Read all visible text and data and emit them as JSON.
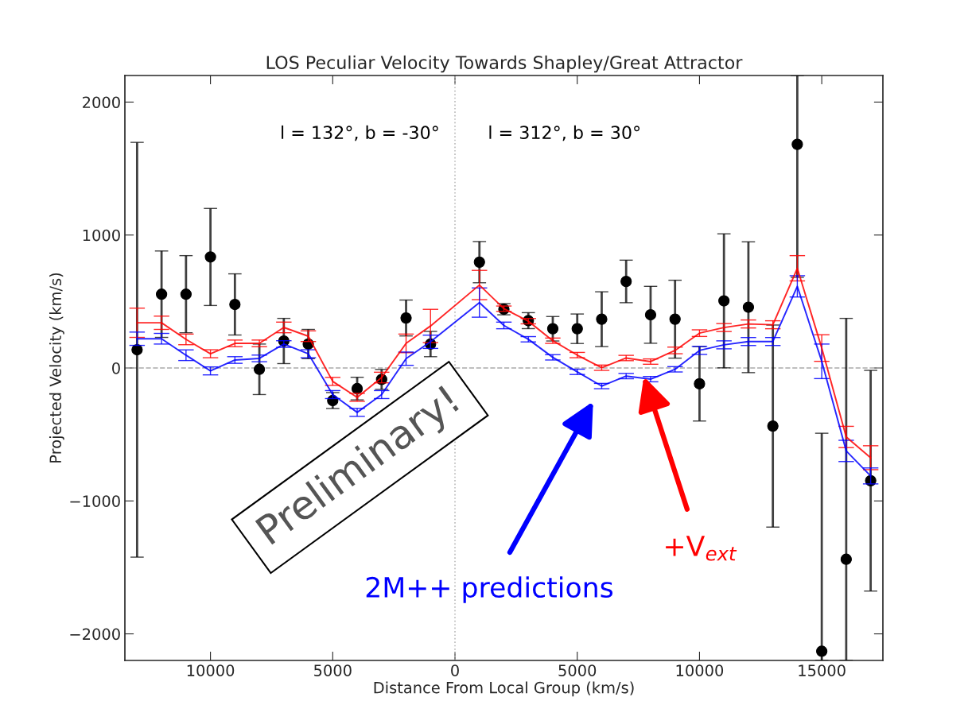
{
  "chart_data": {
    "type": "line",
    "title": "LOS Peculiar Velocity Towards Shapley/Great Attractor",
    "xlabel": "Distance From Local Group (km/s)",
    "ylabel": "Projected Velocity (km/s)",
    "xlim": [
      -13500,
      17500
    ],
    "ylim": [
      -2200,
      2200
    ],
    "xticks": [
      {
        "value": -10000,
        "label": "10000"
      },
      {
        "value": -5000,
        "label": "5000"
      },
      0,
      5000,
      10000,
      15000
    ],
    "yticks": [
      {
        "value": -2000,
        "label": "−2000"
      },
      {
        "value": -1000,
        "label": "−1000"
      },
      0,
      1000,
      2000
    ],
    "grid": false,
    "ref_lines": [
      {
        "axis": "x",
        "value": 0,
        "color": "#bbbbbb",
        "line_style": "dotted"
      },
      {
        "axis": "y",
        "value": 0,
        "color": "#aaaaaa",
        "line_style": "dashed"
      }
    ],
    "annotations": [
      "l = 132°, b = -30°",
      "l = 312°, b = 30°",
      "Preliminary!"
    ],
    "series": [
      {
        "name": "+V$_{ext}$",
        "color": "#ff0000",
        "marker": "none",
        "x": [
          -13000,
          -12000,
          -11000,
          -10000,
          -9000,
          -8000,
          -7000,
          -6000,
          -5000,
          -4000,
          -3000,
          -2000,
          -1000,
          1000,
          2000,
          3000,
          4000,
          5000,
          6000,
          7000,
          8000,
          9000,
          10000,
          11000,
          12000,
          13000,
          14000,
          15000,
          16000,
          17000
        ],
        "values": [
          340,
          340,
          215,
          107,
          185,
          185,
          305,
          239,
          -101,
          -221,
          -72,
          185,
          316,
          624,
          446,
          352,
          205,
          97,
          2,
          75,
          48,
          132,
          262,
          304,
          331,
          325,
          750,
          150,
          -519,
          -675
        ],
        "errors": [
          110,
          50,
          40,
          30,
          25,
          25,
          40,
          40,
          30,
          30,
          40,
          70,
          125,
          110,
          20,
          20,
          20,
          20,
          20,
          20,
          20,
          25,
          25,
          30,
          30,
          30,
          95,
          100,
          80,
          90
        ]
      },
      {
        "name": "2M++ predictions",
        "color": "#0000ff",
        "marker": "none",
        "x": [
          -13000,
          -12000,
          -11000,
          -10000,
          -9000,
          -8000,
          -7000,
          -6000,
          -5000,
          -4000,
          -3000,
          -2000,
          -1000,
          1000,
          2000,
          3000,
          4000,
          5000,
          6000,
          7000,
          8000,
          9000,
          10000,
          11000,
          12000,
          13000,
          14000,
          15000,
          16000,
          17000
        ],
        "values": [
          220,
          220,
          96,
          -22,
          60,
          72,
          180,
          107,
          -200,
          -334,
          -200,
          70,
          197,
          492,
          320,
          216,
          80,
          -29,
          -136,
          -61,
          -84,
          -10,
          132,
          174,
          199,
          199,
          614,
          50,
          -624,
          -812
        ],
        "errors": [
          50,
          40,
          40,
          30,
          25,
          25,
          25,
          30,
          30,
          30,
          30,
          50,
          50,
          110,
          25,
          20,
          20,
          20,
          20,
          20,
          20,
          20,
          30,
          30,
          30,
          30,
          80,
          130,
          80,
          60
        ]
      },
      {
        "type": "scatter",
        "color": "#000000",
        "marker": "circle",
        "x": [
          -13000,
          -12000,
          -11000,
          -10000,
          -9000,
          -8000,
          -7000,
          -6000,
          -5000,
          -4000,
          -3000,
          -2000,
          -1000,
          1000,
          2000,
          3000,
          4000,
          5000,
          6000,
          7000,
          8000,
          9000,
          10000,
          11000,
          12000,
          13000,
          14000,
          15000,
          16000,
          17000
        ],
        "values": [
          137,
          555,
          555,
          835,
          478,
          -10,
          203,
          180,
          -245,
          -155,
          -86,
          376,
          180,
          796,
          442,
          356,
          295,
          295,
          367,
          651,
          400,
          367,
          -119,
          505,
          457,
          -437,
          1682,
          -2131,
          -1439,
          -848
        ],
        "errors": [
          1560,
          325,
          290,
          365,
          230,
          190,
          170,
          110,
          60,
          85,
          75,
          135,
          95,
          155,
          42,
          60,
          92,
          111,
          206,
          160,
          214,
          293,
          280,
          504,
          492,
          760,
          [
            682,
            2200
          ],
          [
            -2200,
            -491
          ],
          [
            -2200,
            373
          ],
          830
        ]
      }
    ]
  }
}
